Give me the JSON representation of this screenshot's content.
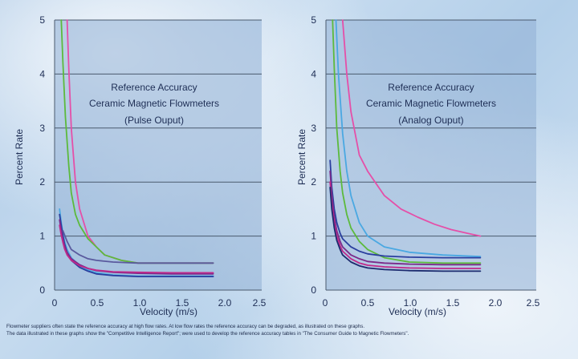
{
  "chart_data": [
    {
      "type": "line",
      "title": [
        "Reference Accuracy",
        "Ceramic Magnetic Flowmeters",
        "(Pulse Ouput)"
      ],
      "xlabel": "Velocity (m/s)",
      "ylabel": "Percent Rate",
      "xlim": [
        0,
        2.5
      ],
      "ylim": [
        0,
        5
      ],
      "xticks": [
        "0",
        "0.5",
        "1.0",
        "1.5",
        "2.0",
        "2.5"
      ],
      "yticks": [
        "0",
        "1",
        "2",
        "3",
        "4",
        "5"
      ],
      "grid": "horizontal",
      "series": [
        {
          "color": "#e54fa8",
          "x": [
            0.15,
            0.17,
            0.2,
            0.25,
            0.3,
            0.4,
            0.5,
            0.6,
            0.8,
            1.0,
            1.3,
            1.6,
            1.9
          ],
          "y": [
            5.0,
            4.1,
            3.0,
            2.0,
            1.5,
            1.0,
            0.8,
            0.65,
            0.55,
            0.5,
            0.5,
            0.5,
            0.5
          ]
        },
        {
          "color": "#5cba3c",
          "x": [
            0.08,
            0.1,
            0.13,
            0.17,
            0.2,
            0.25,
            0.3,
            0.4,
            0.5,
            0.6,
            0.8,
            1.0,
            1.3,
            1.6,
            1.9
          ],
          "y": [
            5.0,
            4.2,
            3.2,
            2.3,
            1.8,
            1.4,
            1.2,
            0.95,
            0.8,
            0.65,
            0.55,
            0.5,
            0.5,
            0.5,
            0.5
          ]
        },
        {
          "color": "#4aa8e2",
          "x": [
            0.06,
            0.08,
            0.1,
            0.12,
            0.15,
            0.2,
            0.3,
            0.4,
            0.5,
            0.7,
            1.0,
            1.4,
            1.9
          ],
          "y": [
            1.5,
            1.25,
            1.05,
            0.9,
            0.75,
            0.6,
            0.45,
            0.37,
            0.32,
            0.28,
            0.26,
            0.26,
            0.26
          ]
        },
        {
          "color": "#2a3e9e",
          "x": [
            0.06,
            0.08,
            0.1,
            0.12,
            0.15,
            0.2,
            0.3,
            0.4,
            0.5,
            0.7,
            1.0,
            1.4,
            1.9
          ],
          "y": [
            1.4,
            1.2,
            1.0,
            0.85,
            0.7,
            0.55,
            0.42,
            0.35,
            0.3,
            0.27,
            0.25,
            0.25,
            0.25
          ]
        },
        {
          "color": "#7a2a8a",
          "x": [
            0.06,
            0.08,
            0.1,
            0.12,
            0.15,
            0.2,
            0.3,
            0.4,
            0.5,
            0.7,
            1.0,
            1.4,
            1.9
          ],
          "y": [
            1.3,
            1.1,
            0.95,
            0.82,
            0.7,
            0.58,
            0.47,
            0.4,
            0.36,
            0.33,
            0.31,
            0.3,
            0.3
          ]
        },
        {
          "color": "#c0288a",
          "x": [
            0.06,
            0.08,
            0.1,
            0.12,
            0.15,
            0.2,
            0.3,
            0.4,
            0.5,
            0.7,
            1.0,
            1.4,
            1.9
          ],
          "y": [
            1.2,
            1.02,
            0.88,
            0.76,
            0.65,
            0.55,
            0.45,
            0.4,
            0.37,
            0.34,
            0.33,
            0.32,
            0.32
          ]
        },
        {
          "color": "#5a5a9e",
          "x": [
            0.1,
            0.15,
            0.2,
            0.3,
            0.4,
            0.5,
            0.7,
            1.0,
            1.4,
            1.9
          ],
          "y": [
            1.1,
            0.9,
            0.75,
            0.65,
            0.58,
            0.55,
            0.52,
            0.5,
            0.5,
            0.5
          ]
        }
      ]
    },
    {
      "type": "line",
      "title": [
        "Reference Accuracy",
        "Ceramic Magnetic Flowmeters",
        "(Analog Ouput)"
      ],
      "xlabel": "Velocity (m/s)",
      "ylabel": "Percent Rate",
      "xlim": [
        0,
        2.5
      ],
      "ylim": [
        0,
        5
      ],
      "xticks": [
        "0",
        "0.5",
        "1.0",
        "1.5",
        "2.0",
        "2.5"
      ],
      "yticks": [
        "0",
        "1",
        "2",
        "3",
        "4",
        "5"
      ],
      "grid": "horizontal",
      "series": [
        {
          "color": "#e54fa8",
          "x": [
            0.2,
            0.25,
            0.3,
            0.4,
            0.5,
            0.7,
            0.9,
            1.1,
            1.3,
            1.5,
            1.7,
            1.85
          ],
          "y": [
            5.0,
            4.0,
            3.3,
            2.5,
            2.2,
            1.75,
            1.5,
            1.35,
            1.22,
            1.12,
            1.05,
            1.0
          ]
        },
        {
          "color": "#5cba3c",
          "x": [
            0.08,
            0.1,
            0.13,
            0.17,
            0.2,
            0.25,
            0.3,
            0.4,
            0.5,
            0.7,
            1.0,
            1.4,
            1.85
          ],
          "y": [
            5.0,
            4.1,
            3.0,
            2.2,
            1.8,
            1.4,
            1.15,
            0.9,
            0.75,
            0.6,
            0.52,
            0.5,
            0.5
          ]
        },
        {
          "color": "#4aa8e2",
          "x": [
            0.12,
            0.15,
            0.2,
            0.25,
            0.3,
            0.4,
            0.5,
            0.7,
            1.0,
            1.4,
            1.85
          ],
          "y": [
            5.0,
            4.0,
            2.9,
            2.2,
            1.75,
            1.25,
            1.0,
            0.8,
            0.7,
            0.65,
            0.62
          ]
        },
        {
          "color": "#2a3e9e",
          "x": [
            0.05,
            0.07,
            0.1,
            0.13,
            0.17,
            0.2,
            0.3,
            0.4,
            0.5,
            0.7,
            1.0,
            1.4,
            1.85
          ],
          "y": [
            2.4,
            1.9,
            1.5,
            1.25,
            1.05,
            0.95,
            0.8,
            0.72,
            0.67,
            0.63,
            0.61,
            0.6,
            0.6
          ]
        },
        {
          "color": "#7a2a8a",
          "x": [
            0.05,
            0.07,
            0.1,
            0.13,
            0.17,
            0.2,
            0.3,
            0.4,
            0.5,
            0.7,
            1.0,
            1.4,
            1.85
          ],
          "y": [
            2.2,
            1.75,
            1.35,
            1.1,
            0.9,
            0.8,
            0.65,
            0.58,
            0.53,
            0.5,
            0.48,
            0.47,
            0.47
          ]
        },
        {
          "color": "#c0288a",
          "x": [
            0.05,
            0.07,
            0.1,
            0.13,
            0.17,
            0.2,
            0.3,
            0.4,
            0.5,
            0.7,
            1.0,
            1.4,
            1.85
          ],
          "y": [
            2.0,
            1.6,
            1.25,
            1.0,
            0.82,
            0.72,
            0.58,
            0.5,
            0.46,
            0.43,
            0.41,
            0.4,
            0.4
          ]
        },
        {
          "color": "#1c2a6e",
          "x": [
            0.05,
            0.07,
            0.1,
            0.13,
            0.17,
            0.2,
            0.3,
            0.4,
            0.5,
            0.7,
            1.0,
            1.4,
            1.85
          ],
          "y": [
            1.9,
            1.5,
            1.15,
            0.92,
            0.75,
            0.65,
            0.52,
            0.45,
            0.41,
            0.38,
            0.36,
            0.35,
            0.35
          ]
        }
      ]
    }
  ],
  "caption": [
    "Flowmeter suppliers often state the reference accuracy at high flow rates. At low flow rates the reference accuracy can be degraded, as illustrated on these graphs.",
    "The data illustrated in these graphs show the \"Competitive Intelligence Report\"; were used to develop the reference accuracy tables in \"The Consumer Guide to Magnetic Flowmeters\"."
  ]
}
